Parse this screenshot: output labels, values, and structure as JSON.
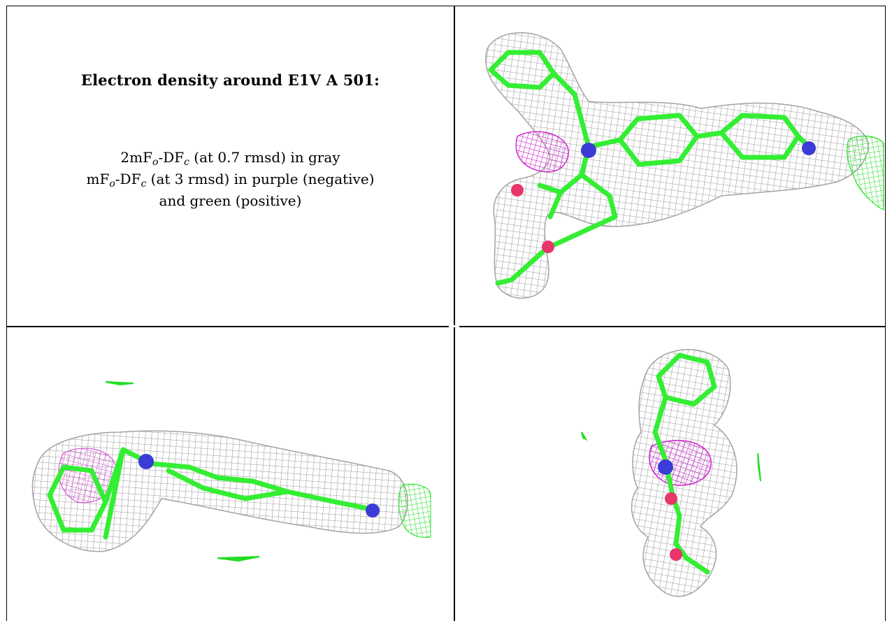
{
  "panel_text": {
    "title": "Electron density around E1V A 501:",
    "line1": {
      "prefix": "2mF",
      "sub1": "o",
      "mid": "-DF",
      "sub2": "c",
      "suffix": " (at 0.7 rmsd) in gray"
    },
    "line2": {
      "prefix": "mF",
      "sub1": "o",
      "mid": "-DF",
      "sub2": "c",
      "suffix": " (at 3 rmsd) in purple (negative)"
    },
    "line3": "and green (positive)"
  },
  "colors": {
    "mesh_gray": "#9a9a9a",
    "carbon_green": "#33ee33",
    "nitrogen_blue": "#3b3bd6",
    "oxygen_red": "#e8356a",
    "negative_purple": "#cc22cc",
    "positive_green": "#22dd22"
  },
  "views": [
    "view-top-right",
    "view-bottom-left",
    "view-bottom-right"
  ]
}
